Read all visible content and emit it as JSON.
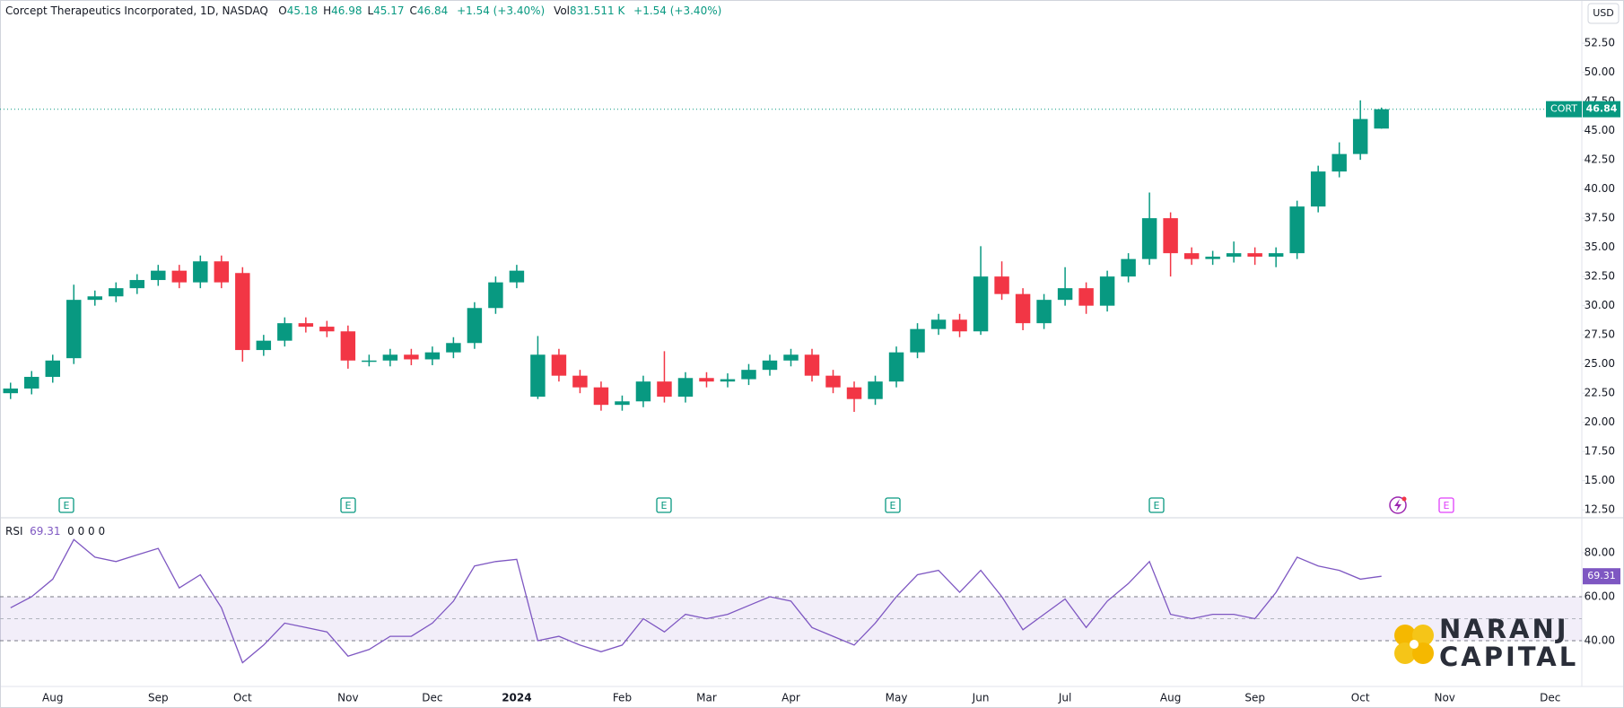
{
  "chart_data": {
    "type": "candlestick",
    "title": "Corcept Therapeutics Incorporated, 1D, NASDAQ",
    "ohlc_summary": [
      {
        "label": "O",
        "value": 45.18
      },
      {
        "label": "H",
        "value": 46.98
      },
      {
        "label": "L",
        "value": 45.17
      },
      {
        "label": "C",
        "value": 46.84
      }
    ],
    "change": "+1.54 (+3.40%)",
    "volume_label": "Vol",
    "volume": "831.511 K",
    "volume_change": "+1.54 (+3.40%)",
    "currency": "USD",
    "symbol": "CORT",
    "last_price": 46.84,
    "up_color": "#089981",
    "down_color": "#f23645",
    "categories": [
      null,
      null,
      "Aug",
      null,
      null,
      null,
      null,
      "Sep",
      null,
      null,
      null,
      "Oct",
      null,
      null,
      null,
      null,
      "Nov",
      null,
      null,
      null,
      "Dec",
      null,
      null,
      null,
      "2024",
      null,
      null,
      null,
      null,
      "Feb",
      null,
      null,
      null,
      "Mar",
      null,
      null,
      null,
      "Apr",
      null,
      null,
      null,
      null,
      "May",
      null,
      null,
      null,
      "Jun",
      null,
      null,
      null,
      "Jul",
      null,
      null,
      null,
      null,
      "Aug",
      null,
      null,
      null,
      "Sep",
      null,
      null,
      null,
      null,
      "Oct",
      null,
      null,
      null,
      "Nov",
      null,
      null,
      null,
      null,
      "Dec",
      null
    ],
    "open": [
      22.5,
      22.9,
      23.9,
      25.5,
      30.5,
      30.8,
      31.5,
      32.2,
      33.0,
      32.0,
      33.8,
      32.8,
      26.2,
      27.0,
      28.5,
      28.2,
      27.8,
      25.3,
      25.3,
      25.8,
      25.4,
      26.0,
      26.8,
      29.8,
      32.0,
      22.2,
      25.8,
      24.0,
      23.0,
      21.5,
      21.8,
      23.5,
      22.2,
      23.8,
      23.5,
      23.7,
      24.5,
      25.3,
      25.8,
      24.0,
      23.0,
      22.0,
      23.5,
      26.0,
      28.0,
      28.8,
      27.8,
      32.5,
      31.0,
      28.5,
      30.5,
      31.5,
      30.0,
      32.5,
      34.0,
      37.5,
      34.5,
      34.0,
      34.2,
      34.5,
      34.2,
      34.5,
      38.5,
      41.5,
      43.0,
      45.18,
      null,
      null,
      null,
      null,
      null,
      null,
      null,
      null,
      null
    ],
    "high": [
      23.4,
      24.4,
      25.8,
      31.8,
      31.3,
      32.0,
      32.7,
      33.5,
      33.5,
      34.3,
      34.3,
      33.3,
      27.5,
      29.0,
      29.0,
      28.7,
      28.3,
      25.8,
      26.3,
      26.3,
      26.5,
      27.3,
      30.3,
      32.5,
      33.5,
      27.4,
      26.3,
      24.5,
      23.5,
      22.3,
      24.0,
      26.1,
      24.3,
      24.3,
      24.2,
      25.0,
      25.8,
      26.3,
      26.3,
      24.5,
      23.5,
      24.0,
      26.5,
      28.5,
      29.3,
      29.3,
      35.1,
      33.8,
      31.5,
      31.0,
      33.3,
      32.0,
      33.0,
      34.5,
      39.7,
      38.0,
      35.0,
      34.7,
      35.5,
      35.0,
      35.0,
      39.0,
      42.0,
      44.0,
      47.6,
      46.98,
      null,
      null,
      null,
      null,
      null,
      null,
      null,
      null,
      null
    ],
    "low": [
      22.0,
      22.4,
      23.4,
      25.0,
      30.0,
      30.3,
      31.0,
      31.7,
      31.5,
      31.5,
      31.5,
      25.2,
      25.7,
      26.5,
      27.7,
      27.3,
      24.6,
      24.8,
      24.8,
      24.9,
      24.9,
      25.5,
      26.3,
      29.3,
      31.5,
      22.0,
      23.5,
      22.5,
      21.0,
      21.0,
      21.3,
      21.7,
      21.7,
      23.0,
      23.0,
      23.2,
      24.0,
      24.8,
      23.5,
      22.5,
      20.9,
      21.5,
      23.0,
      25.5,
      27.5,
      27.3,
      27.5,
      30.5,
      27.9,
      28.0,
      30.0,
      29.3,
      29.5,
      32.0,
      33.5,
      32.5,
      33.5,
      33.5,
      33.7,
      33.5,
      33.3,
      34.0,
      38.0,
      41.0,
      42.5,
      45.17,
      null,
      null,
      null,
      null,
      null,
      null,
      null,
      null,
      null
    ],
    "close": [
      22.9,
      23.9,
      25.3,
      30.5,
      30.8,
      31.5,
      32.2,
      33.0,
      32.0,
      33.8,
      32.0,
      26.2,
      27.0,
      28.5,
      28.2,
      27.8,
      25.3,
      25.3,
      25.8,
      25.4,
      26.0,
      26.8,
      29.8,
      32.0,
      33.0,
      25.8,
      24.0,
      23.0,
      21.5,
      21.8,
      23.5,
      22.2,
      23.8,
      23.5,
      23.7,
      24.5,
      25.3,
      25.8,
      24.0,
      23.0,
      22.0,
      23.5,
      26.0,
      28.0,
      28.8,
      27.8,
      32.5,
      31.0,
      28.5,
      30.5,
      31.5,
      30.0,
      32.5,
      34.0,
      37.5,
      34.5,
      34.0,
      34.2,
      34.5,
      34.2,
      34.5,
      38.5,
      41.5,
      43.0,
      46.0,
      46.84,
      null,
      null,
      null,
      null,
      null,
      null,
      null,
      null,
      null
    ],
    "ylim": [
      11.9,
      56.2
    ],
    "yticks": [
      {
        "value": 12.5,
        "label": "12.50"
      },
      {
        "value": 15,
        "label": "15.00"
      },
      {
        "value": 17.5,
        "label": "17.50"
      },
      {
        "value": 20,
        "label": "20.00"
      },
      {
        "value": 22.5,
        "label": "22.50"
      },
      {
        "value": 25,
        "label": "25.00"
      },
      {
        "value": 27.5,
        "label": "27.50"
      },
      {
        "value": 30,
        "label": "30.00"
      },
      {
        "value": 32.5,
        "label": "32.50"
      },
      {
        "value": 35,
        "label": "35.00"
      },
      {
        "value": 37.5,
        "label": "37.50"
      },
      {
        "value": 40,
        "label": "40.00"
      },
      {
        "value": 42.5,
        "label": "42.50"
      },
      {
        "value": 45,
        "label": "45.00"
      },
      {
        "value": 47.5,
        "label": "47.50"
      },
      {
        "value": 50,
        "label": "50.00"
      },
      {
        "value": 52.5,
        "label": "52.50"
      }
    ],
    "events": [
      "E",
      "E",
      "E",
      "E",
      "E",
      "E"
    ],
    "indicator": {
      "type": "line",
      "name": "RSI",
      "value": 69.31,
      "params": "0 0 0 0",
      "color": "#7e57c2",
      "values": [
        55,
        60,
        68,
        86,
        78,
        76,
        79,
        82,
        64,
        70,
        55,
        30,
        38,
        48,
        46,
        44,
        33,
        36,
        42,
        42,
        48,
        58,
        74,
        76,
        77,
        40,
        42,
        38,
        35,
        38,
        50,
        44,
        52,
        50,
        52,
        56,
        60,
        58,
        46,
        42,
        38,
        48,
        60,
        70,
        72,
        62,
        72,
        60,
        45,
        52,
        59,
        46,
        58,
        66,
        76,
        52,
        50,
        52,
        52,
        50,
        62,
        78,
        74,
        72,
        68,
        69.31,
        null,
        null,
        null,
        null,
        null,
        null,
        null,
        null,
        null
      ],
      "band": [
        40,
        60
      ],
      "ylim": [
        19.2,
        95.5
      ],
      "yticks": [
        {
          "value": 40,
          "label": "40.00"
        },
        {
          "value": 60,
          "label": "60.00"
        },
        {
          "value": 80,
          "label": "80.00"
        }
      ]
    },
    "watermark": [
      "NARANJ",
      "CAPITAL"
    ]
  }
}
